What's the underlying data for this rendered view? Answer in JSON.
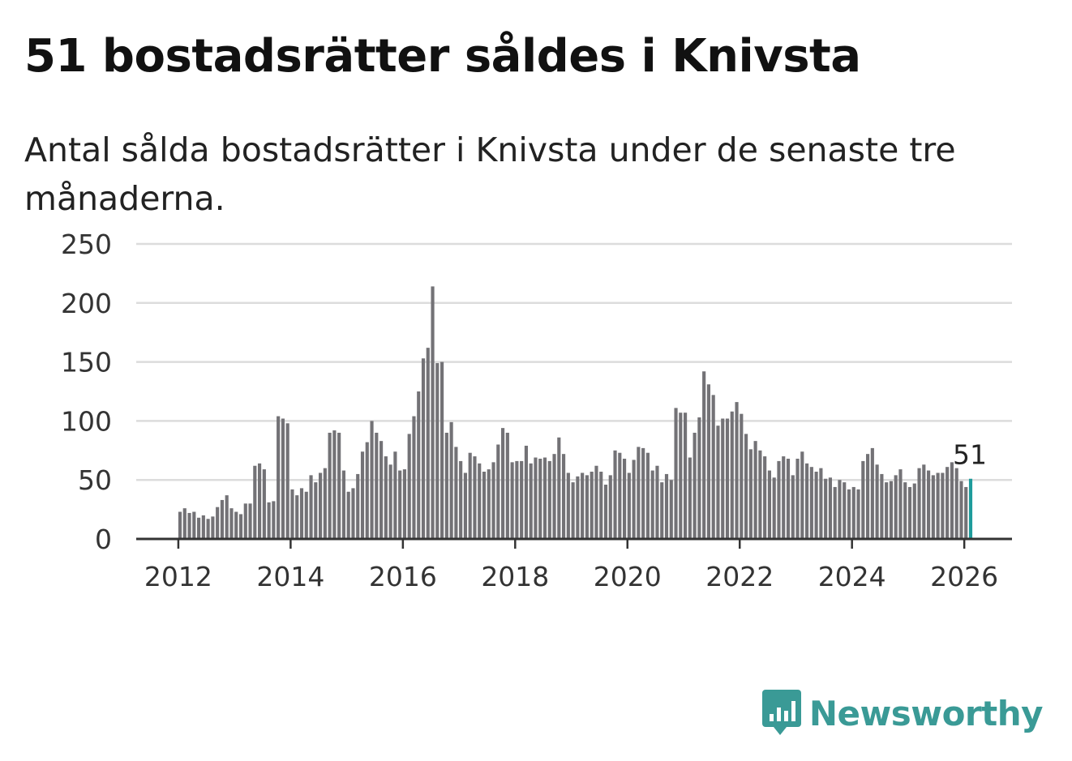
{
  "title": "51 bostadsrätter såldes i Knivsta",
  "subtitle": "Antal sålda bostadsrätter i Knivsta under de senaste tre månaderna.",
  "brand": {
    "name": "Newsworthy",
    "icon": "newsworthy-logo-icon"
  },
  "colors": {
    "bar": "#737276",
    "highlight": "#1e9b9b",
    "brand": "#3a9a96",
    "grid": "#dcdcdc"
  },
  "chart_data": {
    "type": "bar",
    "title": "51 bostadsrätter såldes i Knivsta",
    "xlabel": "",
    "ylabel": "",
    "ylim": [
      0,
      250
    ],
    "y_ticks": [
      0,
      50,
      100,
      150,
      200,
      250
    ],
    "x_ticks": [
      "2012",
      "2014",
      "2016",
      "2018",
      "2020",
      "2022",
      "2024",
      "2026"
    ],
    "x_tick_years": [
      2012,
      2014,
      2016,
      2018,
      2020,
      2022,
      2024,
      2026
    ],
    "x_range_years": [
      2011.25,
      2026.85
    ],
    "series_start": "2012-01",
    "frequency": "monthly",
    "grid": true,
    "highlight_last": true,
    "annotation": {
      "label": "51",
      "target": "last"
    },
    "values": [
      23,
      26,
      22,
      23,
      18,
      20,
      17,
      19,
      27,
      33,
      37,
      26,
      23,
      21,
      30,
      30,
      62,
      64,
      59,
      31,
      32,
      104,
      102,
      98,
      42,
      37,
      43,
      40,
      54,
      48,
      56,
      60,
      90,
      92,
      90,
      58,
      40,
      43,
      55,
      74,
      82,
      100,
      90,
      83,
      70,
      63,
      74,
      58,
      59,
      89,
      104,
      125,
      153,
      162,
      214,
      149,
      150,
      90,
      99,
      78,
      66,
      56,
      73,
      70,
      64,
      57,
      59,
      65,
      80,
      94,
      90,
      65,
      66,
      66,
      79,
      64,
      69,
      68,
      69,
      66,
      72,
      86,
      72,
      56,
      48,
      53,
      56,
      54,
      57,
      62,
      57,
      46,
      54,
      75,
      73,
      68,
      56,
      67,
      78,
      77,
      73,
      58,
      62,
      48,
      55,
      50,
      111,
      107,
      107,
      69,
      90,
      103,
      142,
      131,
      122,
      96,
      102,
      102,
      108,
      116,
      106,
      89,
      76,
      83,
      75,
      70,
      58,
      52,
      66,
      70,
      68,
      54,
      68,
      74,
      64,
      61,
      57,
      60,
      51,
      52,
      44,
      50,
      48,
      42,
      44,
      42,
      66,
      72,
      77,
      63,
      55,
      48,
      49,
      54,
      59,
      48,
      44,
      47,
      60,
      63,
      58,
      54,
      56,
      56,
      61,
      65,
      60,
      49,
      44,
      51
    ]
  }
}
